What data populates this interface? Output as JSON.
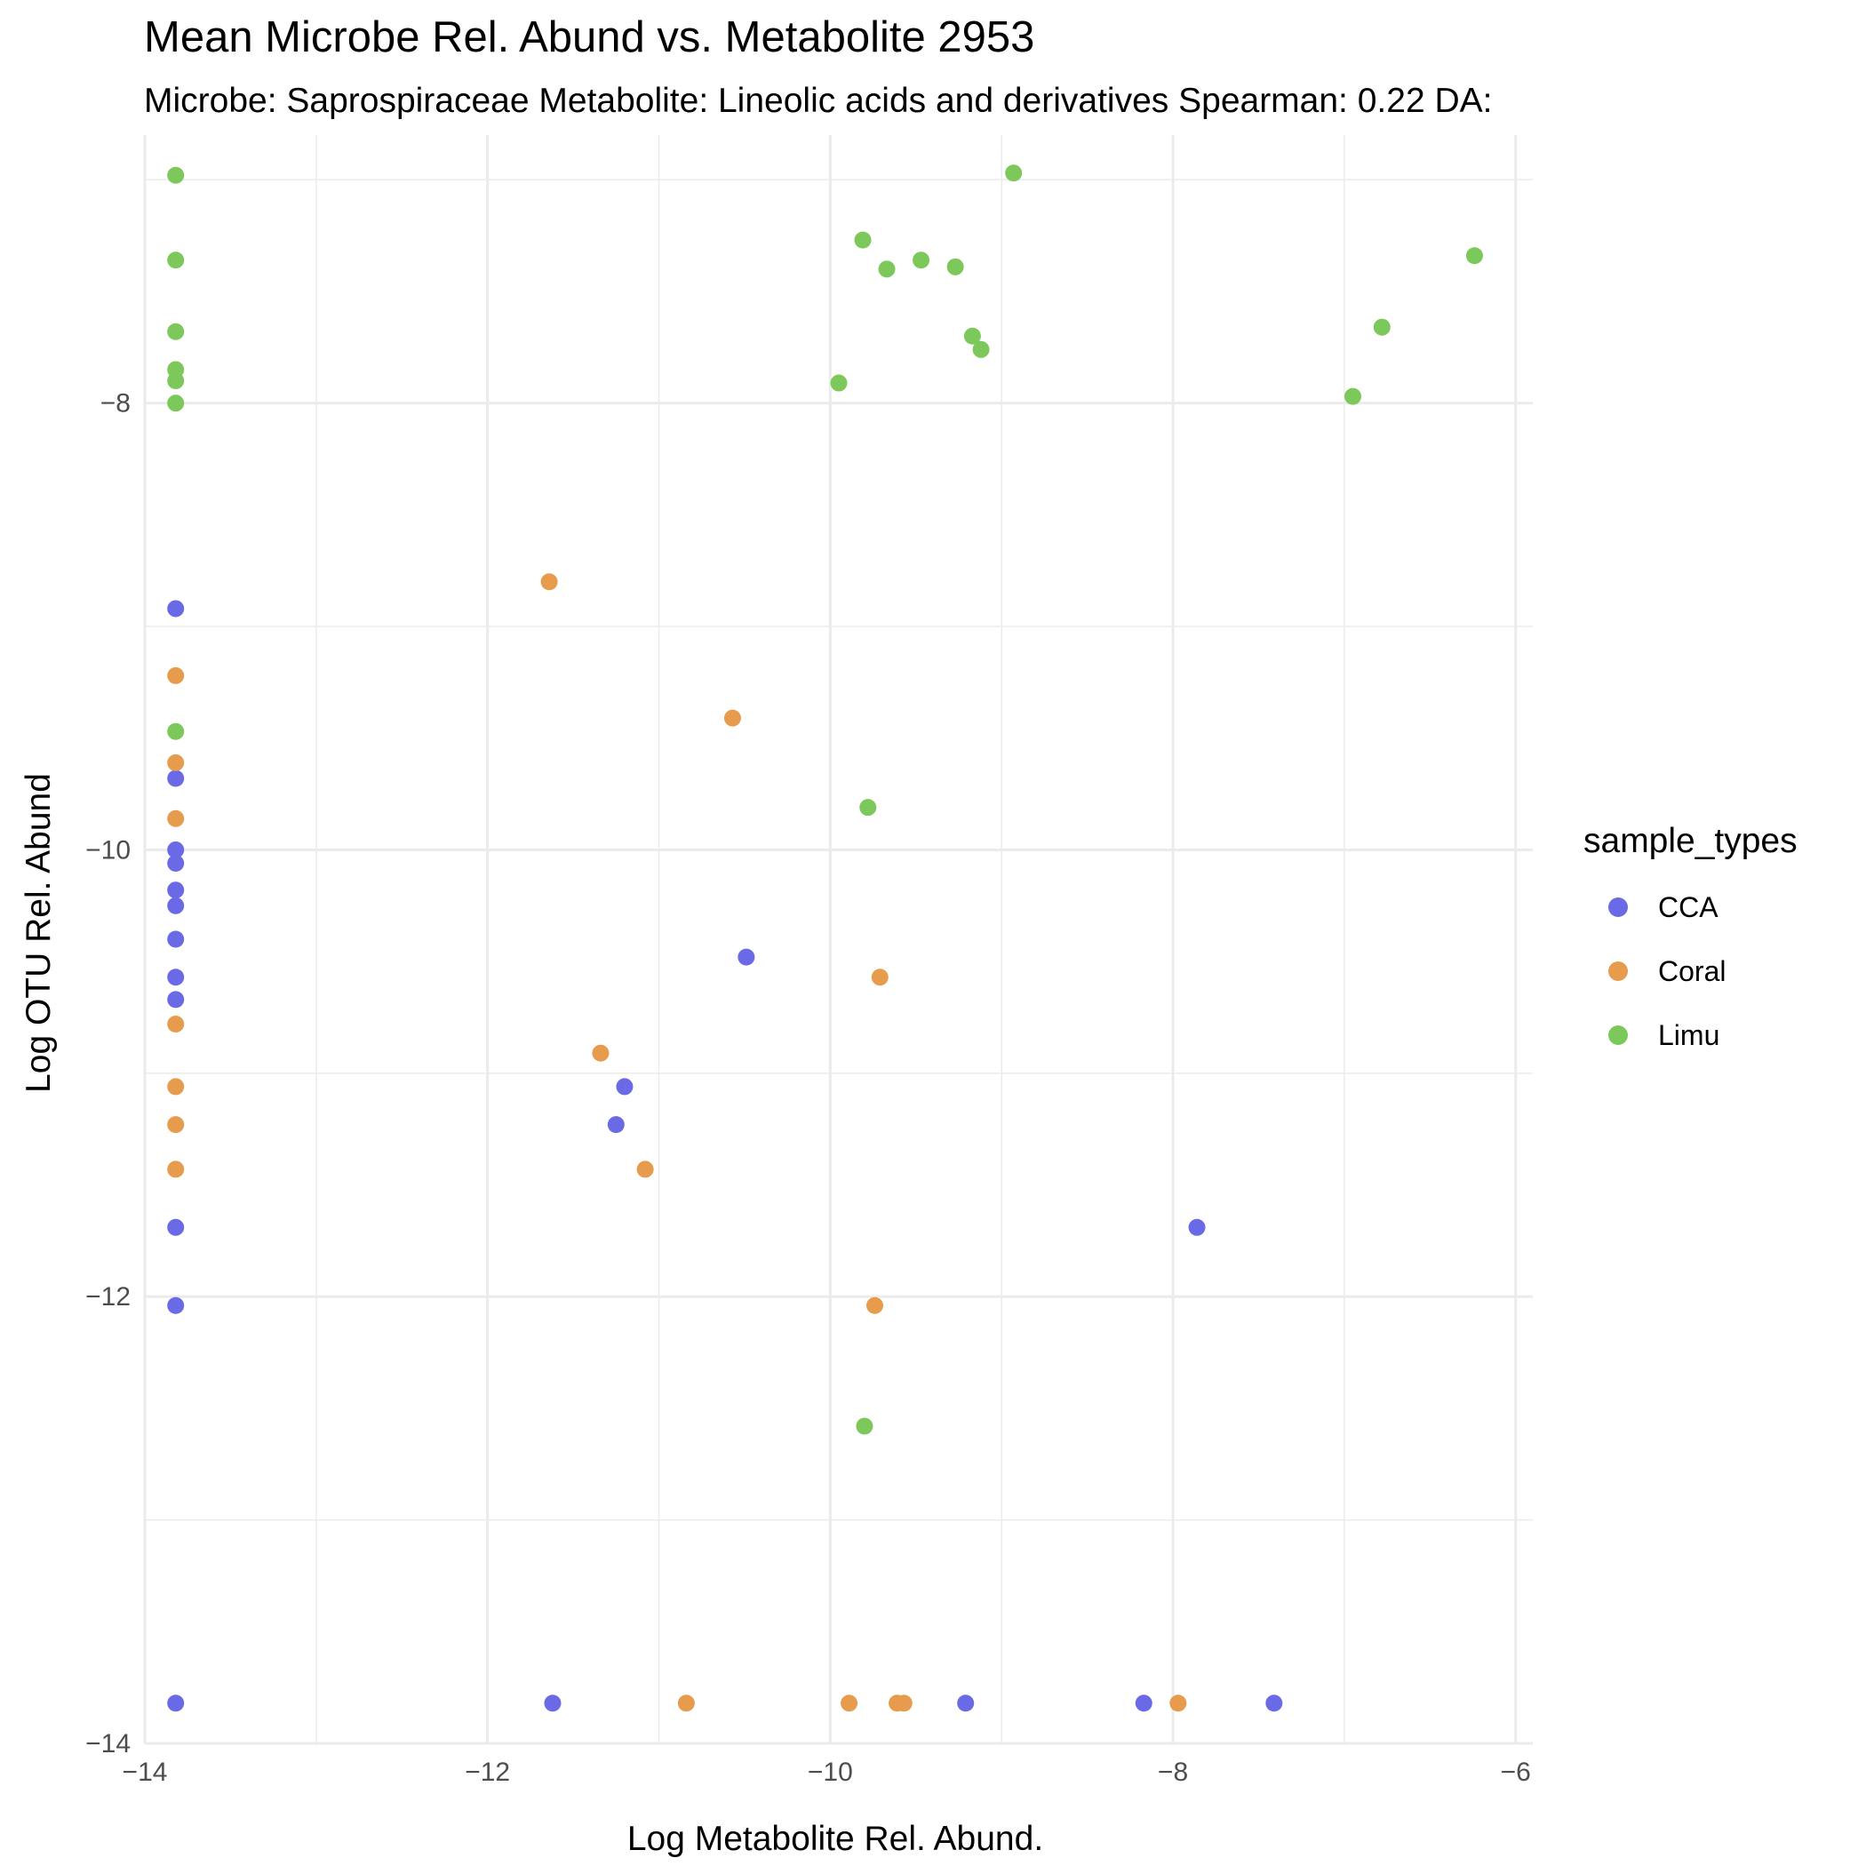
{
  "chart_data": {
    "type": "scatter",
    "title": "Mean Microbe Rel. Abund vs. Metabolite  2953",
    "subtitle": "Microbe: Saprospiraceae Metabolite: Lineolic acids and derivatives Spearman: 0.22 DA:",
    "xlabel": "Log Metabolite Rel. Abund.",
    "ylabel": "Log OTU Rel. Abund",
    "xlim": [
      -14.0,
      -5.9
    ],
    "ylim": [
      -14.0,
      -6.8
    ],
    "x_ticks": [
      -14,
      -12,
      -10,
      -8,
      -6
    ],
    "x_tick_labels": [
      "−14",
      "−12",
      "−10",
      "−8",
      "−6"
    ],
    "y_ticks": [
      -14,
      -12,
      -10,
      -8
    ],
    "y_tick_labels": [
      "−14",
      "−12",
      "−10",
      "−8"
    ],
    "grid": true,
    "legend": {
      "title": "sample_types",
      "position": "right"
    },
    "series": [
      {
        "name": "CCA",
        "color": "#6a6ae6",
        "points": [
          [
            -13.82,
            -8.92
          ],
          [
            -13.82,
            -9.68
          ],
          [
            -13.82,
            -10.0
          ],
          [
            -13.82,
            -10.06
          ],
          [
            -13.82,
            -10.18
          ],
          [
            -13.82,
            -10.25
          ],
          [
            -13.82,
            -10.4
          ],
          [
            -13.82,
            -10.57
          ],
          [
            -13.82,
            -10.67
          ],
          [
            -13.82,
            -11.69
          ],
          [
            -13.82,
            -12.04
          ],
          [
            -13.82,
            -13.82
          ],
          [
            -10.49,
            -10.48
          ],
          [
            -11.2,
            -11.06
          ],
          [
            -11.25,
            -11.23
          ],
          [
            -7.86,
            -11.69
          ],
          [
            -11.62,
            -13.82
          ],
          [
            -9.21,
            -13.82
          ],
          [
            -8.17,
            -13.82
          ],
          [
            -7.41,
            -13.82
          ]
        ]
      },
      {
        "name": "Coral",
        "color": "#e69c4c",
        "points": [
          [
            -13.82,
            -9.22
          ],
          [
            -13.82,
            -9.61
          ],
          [
            -13.82,
            -9.86
          ],
          [
            -13.82,
            -10.78
          ],
          [
            -13.82,
            -11.06
          ],
          [
            -13.82,
            -11.23
          ],
          [
            -13.82,
            -11.43
          ],
          [
            -11.64,
            -8.8
          ],
          [
            -10.57,
            -9.41
          ],
          [
            -9.71,
            -10.57
          ],
          [
            -11.34,
            -10.91
          ],
          [
            -11.08,
            -11.43
          ],
          [
            -9.74,
            -12.04
          ],
          [
            -10.84,
            -13.82
          ],
          [
            -9.89,
            -13.82
          ],
          [
            -9.61,
            -13.82
          ],
          [
            -9.57,
            -13.82
          ],
          [
            -7.97,
            -13.82
          ]
        ]
      },
      {
        "name": "Limu",
        "color": "#7cc85a",
        "points": [
          [
            -13.82,
            -6.98
          ],
          [
            -13.82,
            -7.36
          ],
          [
            -13.82,
            -7.68
          ],
          [
            -13.82,
            -7.85
          ],
          [
            -13.82,
            -7.9
          ],
          [
            -13.82,
            -8.0
          ],
          [
            -13.82,
            -9.47
          ],
          [
            -8.93,
            -6.97
          ],
          [
            -9.81,
            -7.27
          ],
          [
            -9.67,
            -7.4
          ],
          [
            -9.47,
            -7.36
          ],
          [
            -9.27,
            -7.39
          ],
          [
            -9.17,
            -7.7
          ],
          [
            -9.12,
            -7.76
          ],
          [
            -9.95,
            -7.91
          ],
          [
            -6.24,
            -7.34
          ],
          [
            -6.78,
            -7.66
          ],
          [
            -6.95,
            -7.97
          ],
          [
            -9.78,
            -9.81
          ],
          [
            -9.8,
            -12.58
          ]
        ]
      }
    ]
  }
}
